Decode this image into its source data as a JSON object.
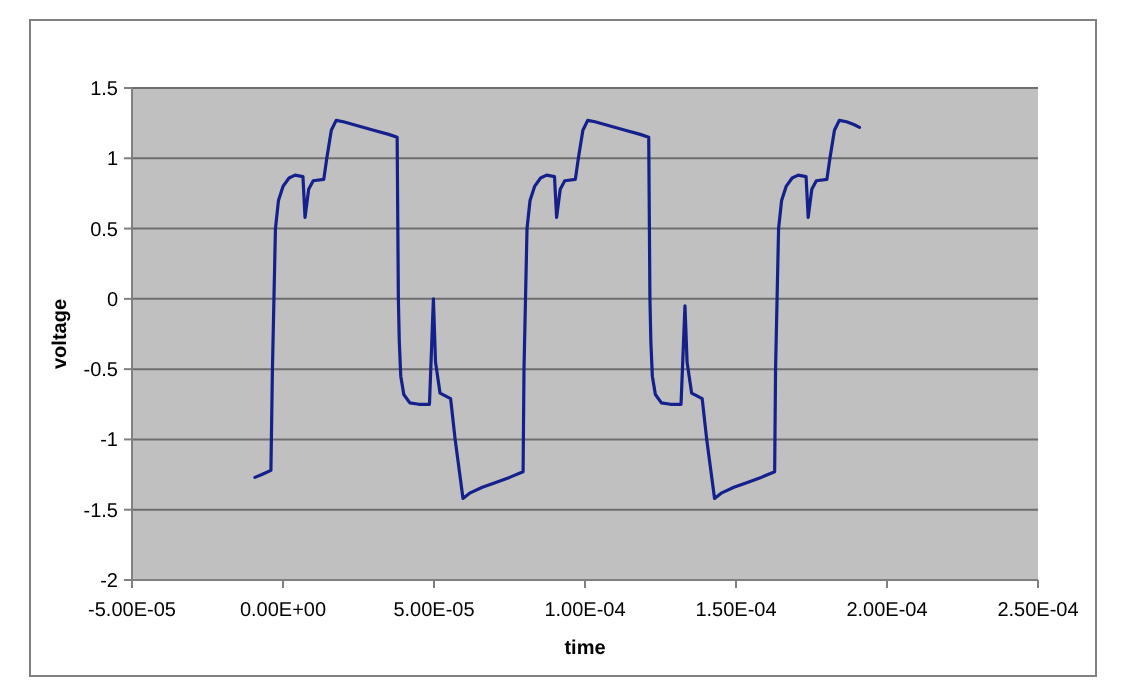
{
  "chart_data": {
    "type": "line",
    "xlabel": "time",
    "ylabel": "voltage",
    "xlim": [
      -5e-05,
      0.00025
    ],
    "xticks": [
      {
        "value": -5e-05,
        "label": "-5.00E-05"
      },
      {
        "value": 0,
        "label": "0.00E+00"
      },
      {
        "value": 5e-05,
        "label": "5.00E-05"
      },
      {
        "value": 0.0001,
        "label": "1.00E-04"
      },
      {
        "value": 0.00015,
        "label": "1.50E-04"
      },
      {
        "value": 0.0002,
        "label": "2.00E-04"
      },
      {
        "value": 0.00025,
        "label": "2.50E-04"
      }
    ],
    "ylim": [
      -2,
      1.5
    ],
    "yticks": [
      -2,
      -1.5,
      -1,
      -0.5,
      0,
      0.5,
      1,
      1.5
    ],
    "grid": "y",
    "marker": "none",
    "line_style": "solid",
    "series": [
      {
        "color": "#14208c",
        "x": [
          -9.3e-06,
          -7e-06,
          -4e-06,
          -3.5e-06,
          -3e-06,
          -2.5e-06,
          -1.5e-06,
          0,
          2e-06,
          4e-06,
          6.6e-06,
          7.3e-06,
          8.5e-06,
          1e-05,
          1.35e-05,
          1.45e-05,
          1.6e-05,
          1.76e-05,
          2e-05,
          2.5e-05,
          3e-05,
          3.5e-05,
          3.78e-05,
          3.82e-05,
          3.85e-05,
          3.9e-05,
          4e-05,
          4.2e-05,
          4.5e-05,
          4.85e-05,
          4.98e-05,
          5.05e-05,
          5.2e-05,
          5.55e-05,
          5.7e-05,
          5.96e-05,
          6.2e-05,
          6.6e-05,
          7e-05,
          7.5e-05,
          7.95e-05,
          7.98e-05,
          8.03e-05,
          8.08e-05,
          8.18e-05,
          8.33e-05,
          8.53e-05,
          8.73e-05,
          8.99e-05,
          9.06e-05,
          9.18e-05,
          9.33e-05,
          9.68e-05,
          9.78e-05,
          9.93e-05,
          0.0001009,
          0.0001033,
          0.0001083,
          0.0001133,
          0.0001183,
          0.0001211,
          0.0001215,
          0.0001218,
          0.0001223,
          0.0001233,
          0.0001253,
          0.0001283,
          0.0001318,
          0.0001331,
          0.0001338,
          0.0001353,
          0.0001388,
          0.0001403,
          0.0001429,
          0.0001453,
          0.0001493,
          0.0001533,
          0.0001583,
          0.0001628,
          0.0001631,
          0.0001636,
          0.0001641,
          0.0001651,
          0.0001666,
          0.0001686,
          0.0001706,
          0.0001732,
          0.0001739,
          0.0001751,
          0.0001766,
          0.0001801,
          0.0001811,
          0.0001826,
          0.0001842,
          0.0001866,
          0.000189,
          0.0001909
        ],
        "values": [
          -1.27,
          -1.25,
          -1.22,
          -0.5,
          0,
          0.5,
          0.7,
          0.8,
          0.86,
          0.88,
          0.87,
          0.58,
          0.78,
          0.84,
          0.85,
          1.0,
          1.2,
          1.27,
          1.26,
          1.23,
          1.2,
          1.17,
          1.15,
          0,
          -0.3,
          -0.55,
          -0.68,
          -0.74,
          -0.75,
          -0.75,
          0,
          -0.45,
          -0.67,
          -0.71,
          -1.0,
          -1.42,
          -1.38,
          -1.34,
          -1.31,
          -1.27,
          -1.23,
          -0.5,
          0,
          0.5,
          0.7,
          0.8,
          0.86,
          0.88,
          0.87,
          0.58,
          0.78,
          0.84,
          0.85,
          1.0,
          1.2,
          1.27,
          1.26,
          1.23,
          1.2,
          1.17,
          1.15,
          0,
          -0.3,
          -0.55,
          -0.68,
          -0.74,
          -0.75,
          -0.75,
          -0.05,
          -0.45,
          -0.67,
          -0.71,
          -1.0,
          -1.42,
          -1.38,
          -1.34,
          -1.31,
          -1.27,
          -1.23,
          -0.5,
          0,
          0.5,
          0.7,
          0.8,
          0.86,
          0.88,
          0.87,
          0.58,
          0.78,
          0.84,
          0.85,
          1.0,
          1.2,
          1.27,
          1.26,
          1.24,
          1.22
        ]
      }
    ]
  }
}
